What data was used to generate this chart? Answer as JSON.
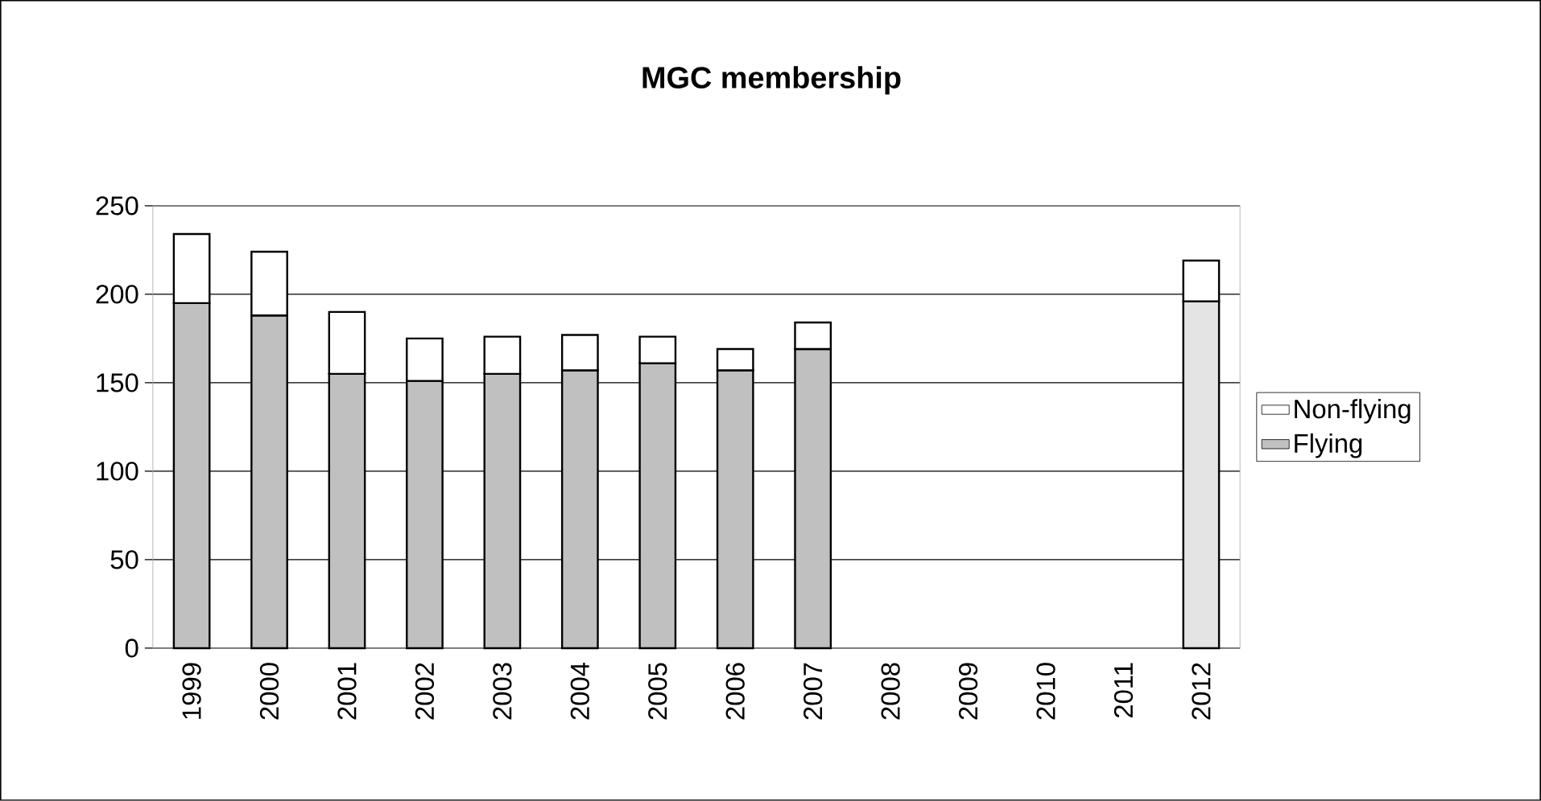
{
  "chart_data": {
    "type": "bar",
    "title": "MGC membership",
    "stacked": true,
    "categories": [
      "1999",
      "2000",
      "2001",
      "2002",
      "2003",
      "2004",
      "2005",
      "2006",
      "2007",
      "2008",
      "2009",
      "2010",
      "2011",
      "2012"
    ],
    "series": [
      {
        "name": "Flying",
        "color": "#c0c0c0",
        "colors": [
          "#c0c0c0",
          "#c0c0c0",
          "#c0c0c0",
          "#c0c0c0",
          "#c0c0c0",
          "#c0c0c0",
          "#c0c0c0",
          "#c0c0c0",
          "#c0c0c0",
          "#c0c0c0",
          "#c0c0c0",
          "#c0c0c0",
          "#c0c0c0",
          "#e4e4e4"
        ],
        "values": [
          195,
          188,
          155,
          151,
          155,
          157,
          161,
          157,
          169,
          null,
          null,
          null,
          null,
          196
        ]
      },
      {
        "name": "Non-flying",
        "color": "#ffffff",
        "values": [
          39,
          36,
          35,
          24,
          21,
          20,
          15,
          12,
          15,
          null,
          null,
          null,
          null,
          23
        ]
      }
    ],
    "ylim": [
      0,
      250
    ],
    "yticks": [
      0,
      50,
      100,
      150,
      200,
      250
    ],
    "grid": "y",
    "legend": "right"
  }
}
